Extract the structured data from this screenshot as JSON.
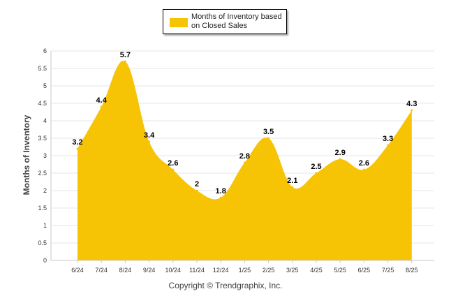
{
  "chart_data": {
    "type": "area",
    "categories": [
      "6/24",
      "7/24",
      "8/24",
      "9/24",
      "10/24",
      "11/24",
      "12/24",
      "1/25",
      "2/25",
      "3/25",
      "4/25",
      "5/25",
      "6/25",
      "7/25",
      "8/25"
    ],
    "series": [
      {
        "name": "Months of Inventory based on Closed Sales",
        "values": [
          3.2,
          4.4,
          5.7,
          3.4,
          2.6,
          2.0,
          1.8,
          2.8,
          3.5,
          2.1,
          2.5,
          2.9,
          2.6,
          3.3,
          4.3
        ]
      }
    ],
    "data_labels": [
      "3.2",
      "4.4",
      "5.7",
      "3.4",
      "2.6",
      "2",
      "1.8",
      "2.8",
      "3.5",
      "2.1",
      "2.5",
      "2.9",
      "2.6",
      "3.3",
      "4.3"
    ],
    "ylabel": "Months of Inventory",
    "xlabel": "",
    "ylim": [
      0,
      6
    ],
    "yticks": [
      "0",
      "0.5",
      "1",
      "1.5",
      "2",
      "2.5",
      "3",
      "3.5",
      "4",
      "4.5",
      "5",
      "5.5",
      "6"
    ],
    "grid": true,
    "legend_position": "top-center",
    "fill_color": "#F7C405"
  },
  "legend": {
    "label": "Months of Inventory based on Closed Sales"
  },
  "footer": {
    "copyright": "Copyright © Trendgraphix, Inc."
  }
}
